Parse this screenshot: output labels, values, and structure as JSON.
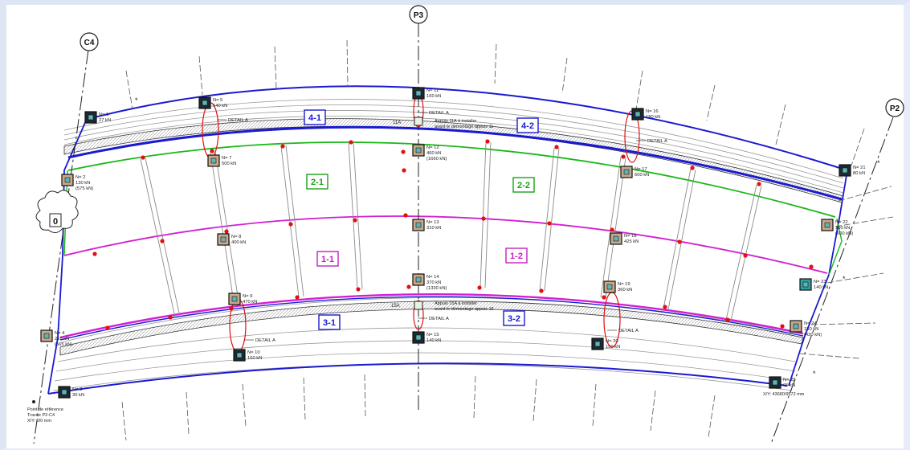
{
  "axes": {
    "c4": "C4",
    "p3": "P3",
    "p2": "P2"
  },
  "panels": [
    {
      "label": "4-1",
      "color": "#1a1ad0"
    },
    {
      "label": "4-2",
      "color": "#1a1ad0"
    },
    {
      "label": "2-1",
      "color": "#19a319"
    },
    {
      "label": "2-2",
      "color": "#19a319"
    },
    {
      "label": "1-1",
      "color": "#c41ec4"
    },
    {
      "label": "1-2",
      "color": "#c41ec4"
    },
    {
      "label": "3-1",
      "color": "#1a1ad0"
    },
    {
      "label": "3-2",
      "color": "#1a1ad0"
    }
  ],
  "zero_tag": "0",
  "supports": [
    {
      "num": "N= 1",
      "load": "27 kN",
      "sub": ""
    },
    {
      "num": "N= 5",
      "load": "140 kN",
      "sub": ""
    },
    {
      "num": "N= 11",
      "load": "160 kN",
      "sub": ""
    },
    {
      "num": "N= 16",
      "load": "180 kN",
      "sub": ""
    },
    {
      "num": "N= 21",
      "load": "80 kN",
      "sub": ""
    },
    {
      "num": "N= 2",
      "load": "130 kN",
      "sub": "(575 kN)"
    },
    {
      "num": "N= 7",
      "load": "500 kN",
      "sub": ""
    },
    {
      "num": "N= 12",
      "load": "460 kN",
      "sub": "(1660 kN)"
    },
    {
      "num": "N= 17",
      "load": "600 kN",
      "sub": ""
    },
    {
      "num": "N= 22",
      "load": "150 kN",
      "sub": "(600 kN)"
    },
    {
      "num": "N= 8",
      "load": "400 kN",
      "sub": ""
    },
    {
      "num": "N= 13",
      "load": "310 kN",
      "sub": ""
    },
    {
      "num": "N= 18",
      "load": "425 kN",
      "sub": ""
    },
    {
      "num": "N= 23",
      "load": "140 kN",
      "sub": ""
    },
    {
      "num": "N= 9",
      "load": "470 kN",
      "sub": ""
    },
    {
      "num": "N= 14",
      "load": "370 kN",
      "sub": "(1330 kN)"
    },
    {
      "num": "N= 19",
      "load": "360 kN",
      "sub": ""
    },
    {
      "num": "N= 4",
      "load": "215 kN",
      "sub": "(565 kN)"
    },
    {
      "num": "N= 24",
      "load": "150 kN",
      "sub": "(420 kN)"
    },
    {
      "num": "N= 10",
      "load": "160 kN",
      "sub": ""
    },
    {
      "num": "N= 15",
      "load": "140 kN",
      "sub": ""
    },
    {
      "num": "N= 20",
      "load": "150 kN",
      "sub": ""
    },
    {
      "num": "N= 3",
      "load": "30 kN",
      "sub": ""
    },
    {
      "num": "N= 25",
      "load": "65 kN",
      "sub": ""
    }
  ],
  "details": [
    "DETAIL A",
    "DETAIL A",
    "DETAIL A",
    "DETAIL A",
    "DETAIL A",
    "DETAIL A"
  ],
  "notes": {
    "tag_11a": "11A",
    "appuis_11a_l1": "Appuis 11A à installer",
    "appuis_11a_l2": "avant le démontage appuis 11",
    "tag_15a": "15A",
    "appuis_15a_l1": "Appuis 15A à installer",
    "appuis_15a_l2": "avant le démontage appuis 15",
    "ref_l1": "Point de référence",
    "ref_l2": "Travée P2-C4",
    "ref_l3": "X/Y: 0/0 mm",
    "coord": "X/Y: 43680/9572 mm"
  },
  "colors": {
    "blue": "#1a1ad0",
    "green": "#19b819",
    "magenta": "#d21fd2",
    "red": "#e01010",
    "grey": "#8a8a8a",
    "teal": "#2fa0a0"
  }
}
